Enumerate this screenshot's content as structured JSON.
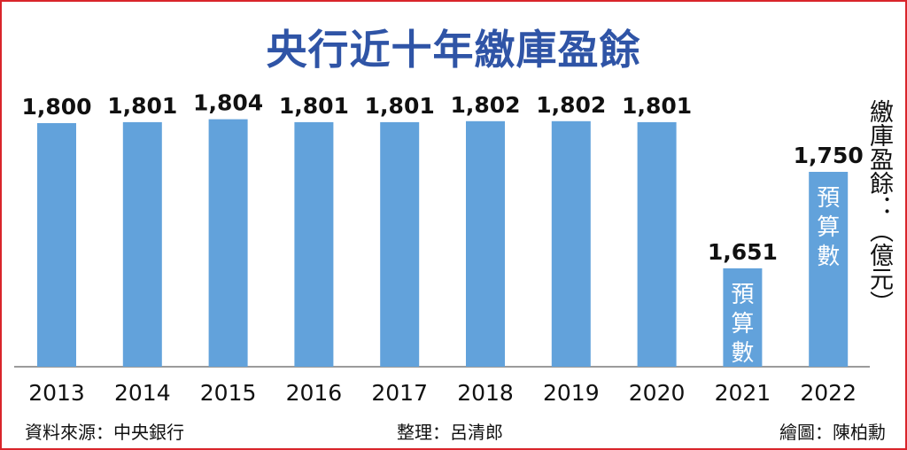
{
  "title": "央行近十年繳庫盈餘",
  "unit_label": "繳庫盈餘：（億元）",
  "footer": {
    "source": "資料來源：中央銀行",
    "editor": "整理：呂清郎",
    "artist": "繪圖：陳柏勳"
  },
  "colors": {
    "bar": "#62a2db",
    "title": "#2f54a6",
    "frame": "#d9252b"
  },
  "chart_data": {
    "type": "bar",
    "title": "央行近十年繳庫盈餘",
    "ylabel": "繳庫盈餘：（億元）",
    "categories": [
      "2013",
      "2014",
      "2015",
      "2016",
      "2017",
      "2018",
      "2019",
      "2020",
      "2021",
      "2022"
    ],
    "values": [
      1800,
      1801,
      1804,
      1801,
      1801,
      1802,
      1802,
      1801,
      1651,
      1750
    ],
    "value_labels": [
      "1,800",
      "1,801",
      "1,804",
      "1,801",
      "1,801",
      "1,802",
      "1,802",
      "1,801",
      "1,651",
      "1,750"
    ],
    "bar_annotations": [
      "",
      "",
      "",
      "",
      "",
      "",
      "",
      "",
      "預算數",
      "預算數"
    ],
    "grid": false,
    "legend": "none"
  }
}
